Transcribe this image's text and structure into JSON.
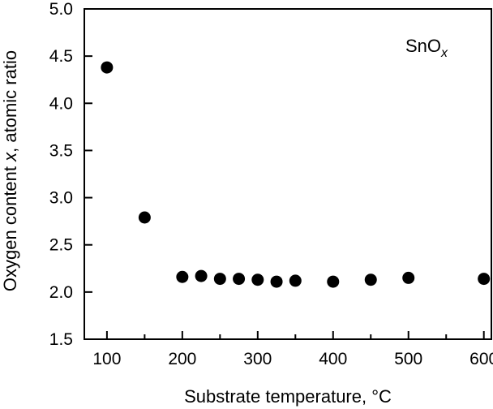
{
  "chart_data": {
    "type": "scatter",
    "xlabel": "Substrate temperature, °C",
    "ylabel_prefix": "Oxygen content ",
    "ylabel_var": "x",
    "ylabel_suffix": ", atomic ratio",
    "annotation_main": "SnO",
    "annotation_sub": "x",
    "xlim": [
      70,
      610
    ],
    "ylim": [
      1.5,
      5.0
    ],
    "x_ticks": [
      100,
      200,
      300,
      400,
      500,
      600
    ],
    "x_minor_ticks": [
      150,
      250,
      350,
      450,
      550
    ],
    "y_ticks": [
      1.5,
      2.0,
      2.5,
      3.0,
      3.5,
      4.0,
      4.5,
      5.0
    ],
    "y_tick_labels": [
      "1.5",
      "2.0",
      "2.5",
      "3.0",
      "3.5",
      "4.0",
      "4.5",
      "5.0"
    ],
    "grid": false,
    "marker_color": "#000000",
    "points": [
      {
        "x": 100,
        "y": 4.38
      },
      {
        "x": 150,
        "y": 2.79
      },
      {
        "x": 200,
        "y": 2.16
      },
      {
        "x": 225,
        "y": 2.17
      },
      {
        "x": 250,
        "y": 2.14
      },
      {
        "x": 275,
        "y": 2.14
      },
      {
        "x": 300,
        "y": 2.13
      },
      {
        "x": 325,
        "y": 2.11
      },
      {
        "x": 350,
        "y": 2.12
      },
      {
        "x": 400,
        "y": 2.11
      },
      {
        "x": 450,
        "y": 2.13
      },
      {
        "x": 500,
        "y": 2.15
      },
      {
        "x": 600,
        "y": 2.14
      }
    ]
  }
}
